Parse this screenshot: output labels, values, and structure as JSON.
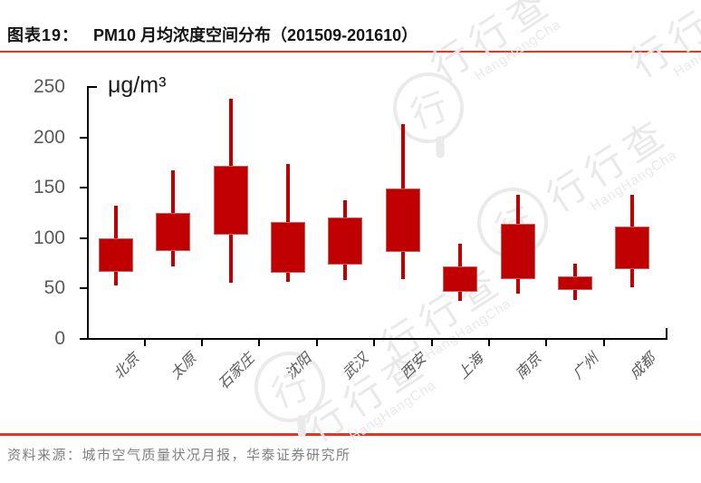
{
  "header": {
    "label": "图表19：",
    "title": "PM10 月均浓度空间分布（201509-201610）"
  },
  "footer": {
    "text": "资料来源：城市空气质量状况月报，华泰证券研究所"
  },
  "watermark": {
    "logo_char": "行",
    "brand": "行行查",
    "latin": "HangHangCha"
  },
  "colors": {
    "accent_red": "#ee3124",
    "candle_fill": "#c00000",
    "candle_border": "#d25a52",
    "axis": "#000000",
    "tick_label": "#595959",
    "footer_text": "#7f7f7f"
  },
  "chart_data": {
    "type": "boxplot",
    "title": "PM10 月均浓度空间分布（201509-201610）",
    "ylabel_unit": "μg/m³",
    "ylim": [
      0,
      250
    ],
    "yticks": [
      250,
      200,
      150,
      100,
      50,
      0
    ],
    "grid": "off",
    "legend": "none",
    "categories": [
      "北京",
      "太原",
      "石家庄",
      "沈阳",
      "武汉",
      "西安",
      "上海",
      "南京",
      "广州",
      "成都"
    ],
    "values": [
      {
        "city": "北京",
        "low": 53,
        "box_bottom": 66,
        "box_top": 100,
        "high": 132
      },
      {
        "city": "太原",
        "low": 72,
        "box_bottom": 87,
        "box_top": 125,
        "high": 167
      },
      {
        "city": "石家庄",
        "low": 55,
        "box_bottom": 103,
        "box_top": 172,
        "high": 238
      },
      {
        "city": "沈阳",
        "low": 56,
        "box_bottom": 65,
        "box_top": 116,
        "high": 173
      },
      {
        "city": "武汉",
        "low": 58,
        "box_bottom": 73,
        "box_top": 120,
        "high": 137
      },
      {
        "city": "西安",
        "low": 59,
        "box_bottom": 86,
        "box_top": 149,
        "high": 213
      },
      {
        "city": "上海",
        "low": 37,
        "box_bottom": 46,
        "box_top": 72,
        "high": 94
      },
      {
        "city": "南京",
        "low": 45,
        "box_bottom": 59,
        "box_top": 114,
        "high": 143
      },
      {
        "city": "广州",
        "low": 38,
        "box_bottom": 48,
        "box_top": 62,
        "high": 74
      },
      {
        "city": "成都",
        "low": 51,
        "box_bottom": 69,
        "box_top": 111,
        "high": 143
      }
    ]
  }
}
